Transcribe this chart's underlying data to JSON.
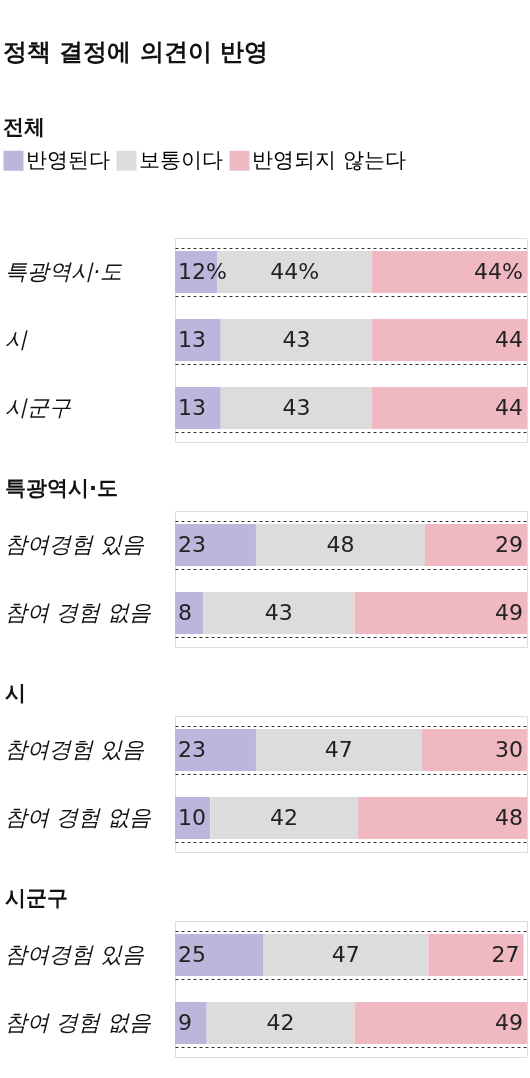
{
  "chart_data": [
    {
      "type": "bar",
      "orientation": "horizontal",
      "stacked": true,
      "title": "정책 결정에 의견이 반영",
      "subtitle": "전체",
      "legend": "top",
      "grid": "y",
      "xlim": [
        0,
        100
      ],
      "categories": [
        "특광역시·도",
        "시",
        "시군구"
      ],
      "series": [
        {
          "name": "반영된다",
          "color": "#bdb6dc",
          "values": [
            12,
            13,
            13
          ],
          "value_labels": [
            "12%",
            "13",
            "13"
          ]
        },
        {
          "name": "보통이다",
          "color": "#dcdcdc",
          "values": [
            44,
            43,
            43
          ],
          "value_labels": [
            "44%",
            "43",
            "43"
          ]
        },
        {
          "name": "반영되지 않는다",
          "color": "#f0b9c2",
          "values": [
            44,
            44,
            44
          ],
          "value_labels": [
            "44%",
            "44",
            "44"
          ]
        }
      ]
    },
    {
      "type": "bar",
      "orientation": "horizontal",
      "stacked": true,
      "title": "특광역시·도",
      "grid": "y",
      "xlim": [
        0,
        100
      ],
      "data_labels": true,
      "categories": [
        "참여경험 있음",
        "참여 경험 없음"
      ],
      "series": [
        {
          "color": "#bdb6dc",
          "values": [
            23,
            8
          ]
        },
        {
          "color": "#dcdcdc",
          "values": [
            48,
            43
          ]
        },
        {
          "color": "#f0b9c2",
          "values": [
            29,
            49
          ]
        }
      ]
    },
    {
      "type": "bar",
      "orientation": "horizontal",
      "stacked": true,
      "title": "시",
      "grid": "y",
      "xlim": [
        0,
        100
      ],
      "data_labels": true,
      "categories": [
        "참여경험 있음",
        "참여 경험 없음"
      ],
      "series": [
        {
          "color": "#bdb6dc",
          "values": [
            23,
            10
          ]
        },
        {
          "color": "#dcdcdc",
          "values": [
            47,
            42
          ]
        },
        {
          "color": "#f0b9c2",
          "values": [
            30,
            48
          ]
        }
      ]
    },
    {
      "type": "bar",
      "orientation": "horizontal",
      "stacked": true,
      "title": "시군구",
      "grid": "y",
      "xlim": [
        0,
        100
      ],
      "data_labels": true,
      "categories": [
        "참여경험 있음",
        "참여 경험 없음"
      ],
      "series": [
        {
          "color": "#bdb6dc",
          "values": [
            25,
            9
          ]
        },
        {
          "color": "#dcdcdc",
          "values": [
            47,
            42
          ]
        },
        {
          "color": "#f0b9c2",
          "values": [
            27,
            49
          ]
        }
      ]
    }
  ]
}
